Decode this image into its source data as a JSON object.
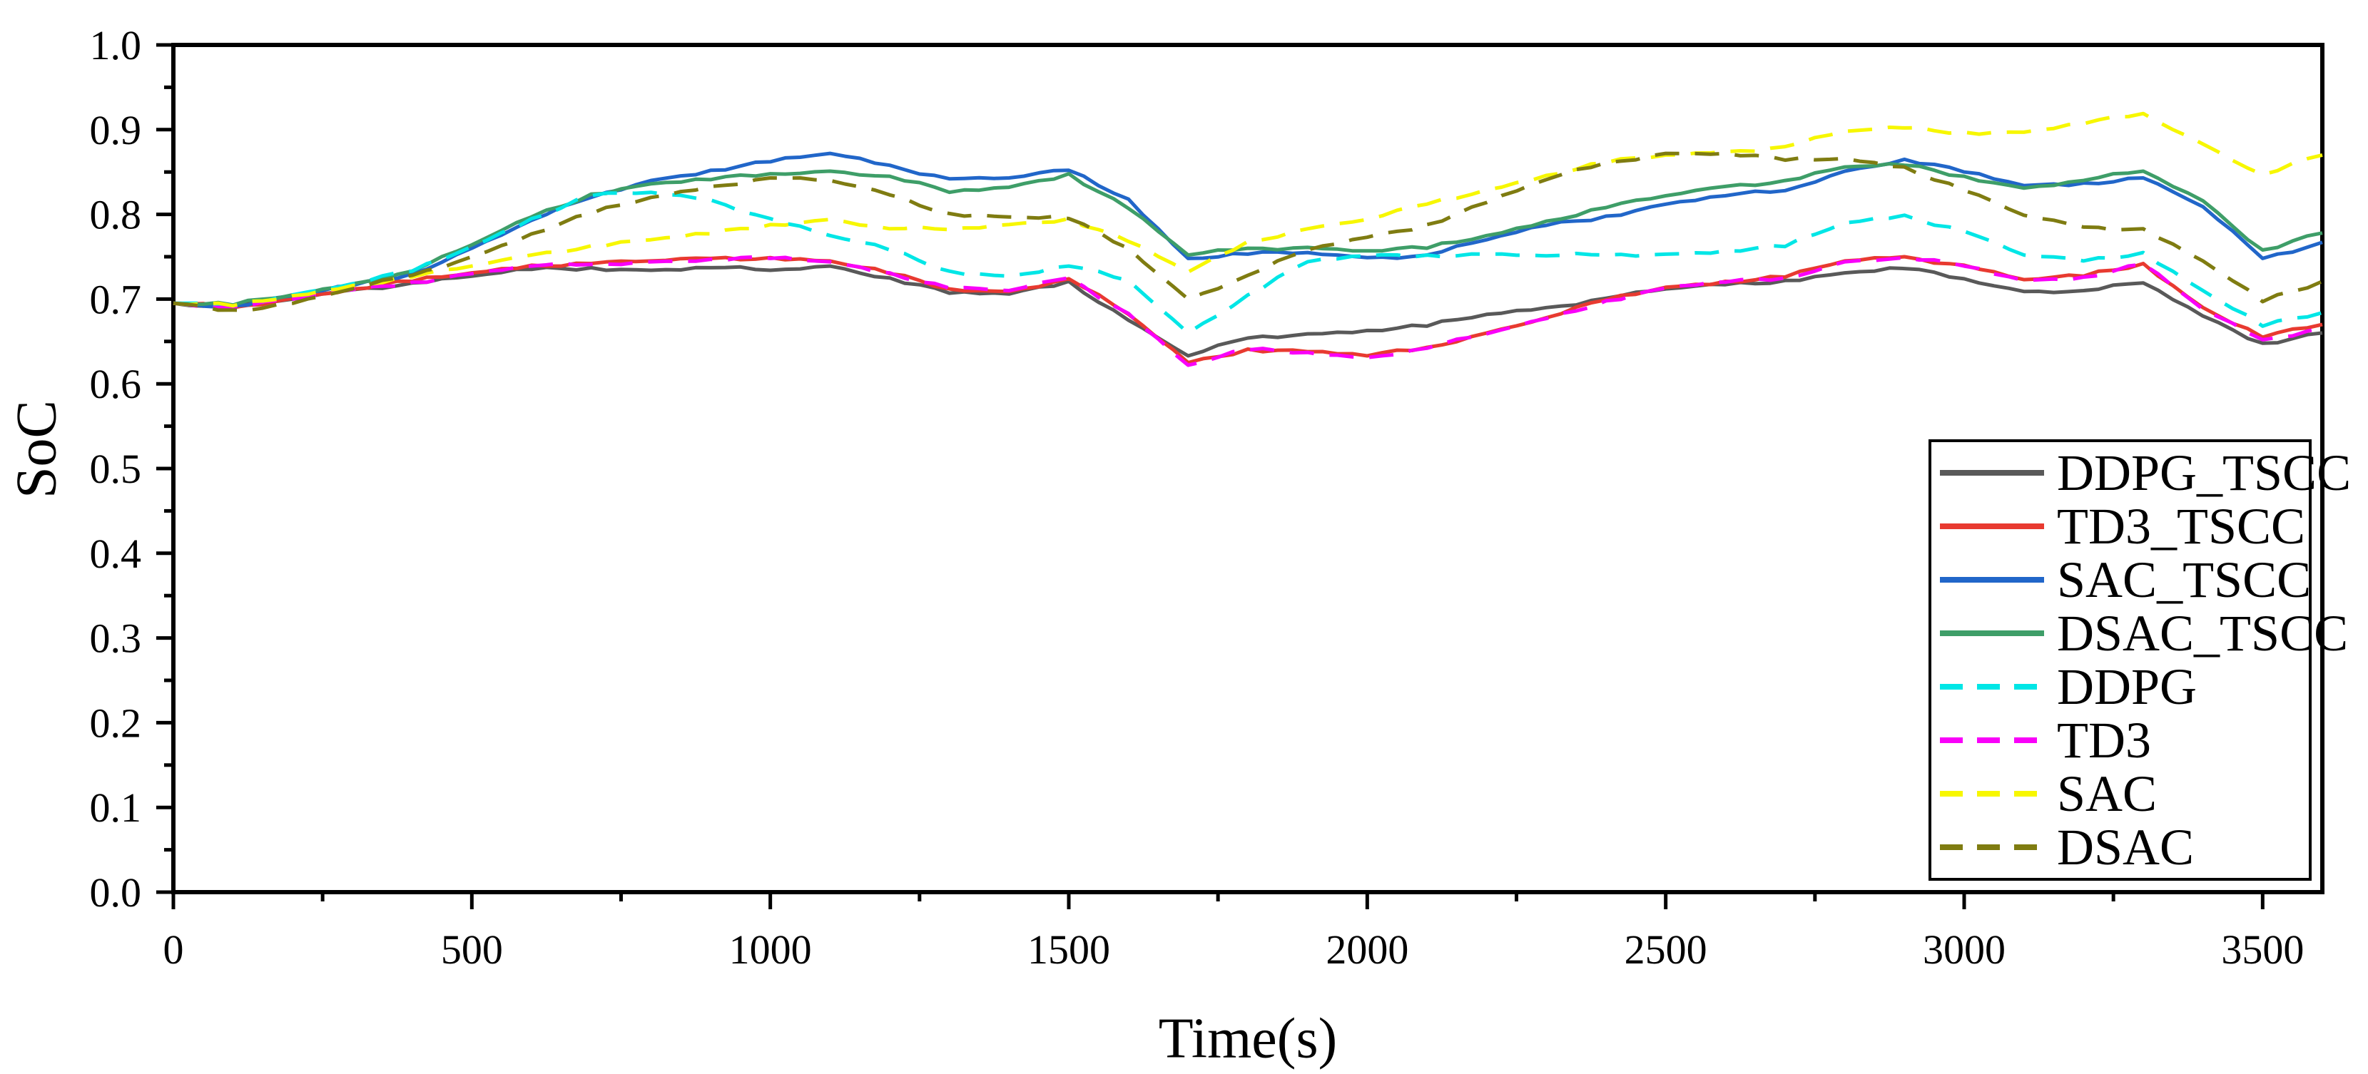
{
  "figure": {
    "background_color": "#ffffff",
    "axis_color": "#000000"
  },
  "chart_data": {
    "type": "line",
    "title": "",
    "xlabel": "Time(s)",
    "ylabel": "SoC",
    "xlim": [
      0,
      3600
    ],
    "ylim": [
      0.0,
      1.0
    ],
    "grid": false,
    "legend_position": "lower-right-inset",
    "x_major_ticks": [
      0,
      500,
      1000,
      1500,
      2000,
      2500,
      3000,
      3500
    ],
    "x_tick_labels": [
      "0",
      "500",
      "1000",
      "1500",
      "2000",
      "2500",
      "3000",
      "3500"
    ],
    "x_minor_step": 250,
    "y_major_ticks": [
      0.0,
      0.1,
      0.2,
      0.3,
      0.4,
      0.5,
      0.6,
      0.7,
      0.8,
      0.9,
      1.0
    ],
    "y_tick_labels": [
      "0.0",
      "0.1",
      "0.2",
      "0.3",
      "0.4",
      "0.5",
      "0.6",
      "0.7",
      "0.8",
      "0.9",
      "1.0"
    ],
    "y_minor_step": 0.05,
    "x_step": 100,
    "series": [
      {
        "name": "DDPG_TSCC",
        "color": "#595959",
        "style": "solid",
        "values": [
          0.695,
          0.691,
          0.7,
          0.711,
          0.719,
          0.727,
          0.735,
          0.737,
          0.734,
          0.737,
          0.734,
          0.739,
          0.725,
          0.707,
          0.706,
          0.721,
          0.675,
          0.633,
          0.654,
          0.659,
          0.663,
          0.668,
          0.682,
          0.69,
          0.701,
          0.712,
          0.717,
          0.722,
          0.731,
          0.736,
          0.724,
          0.709,
          0.71,
          0.719,
          0.68,
          0.648,
          0.66
        ]
      },
      {
        "name": "TD3_TSCC",
        "color": "#e83a30",
        "style": "solid",
        "values": [
          0.695,
          0.69,
          0.701,
          0.712,
          0.721,
          0.731,
          0.74,
          0.742,
          0.745,
          0.748,
          0.749,
          0.745,
          0.73,
          0.712,
          0.709,
          0.724,
          0.682,
          0.625,
          0.641,
          0.638,
          0.633,
          0.643,
          0.66,
          0.678,
          0.699,
          0.714,
          0.721,
          0.726,
          0.745,
          0.75,
          0.74,
          0.723,
          0.727,
          0.742,
          0.69,
          0.655,
          0.67
        ]
      },
      {
        "name": "SAC_TSCC",
        "color": "#2166c9",
        "style": "solid",
        "values": [
          0.695,
          0.692,
          0.704,
          0.716,
          0.73,
          0.76,
          0.793,
          0.82,
          0.84,
          0.852,
          0.862,
          0.872,
          0.858,
          0.842,
          0.843,
          0.852,
          0.818,
          0.748,
          0.753,
          0.755,
          0.749,
          0.752,
          0.77,
          0.787,
          0.798,
          0.812,
          0.822,
          0.828,
          0.851,
          0.865,
          0.85,
          0.834,
          0.837,
          0.843,
          0.809,
          0.748,
          0.767
        ]
      },
      {
        "name": "DSAC_TSCC",
        "color": "#3e9e68",
        "style": "solid",
        "values": [
          0.695,
          0.693,
          0.705,
          0.718,
          0.733,
          0.764,
          0.797,
          0.824,
          0.836,
          0.841,
          0.848,
          0.851,
          0.845,
          0.826,
          0.832,
          0.848,
          0.807,
          0.752,
          0.76,
          0.761,
          0.757,
          0.76,
          0.775,
          0.792,
          0.808,
          0.822,
          0.833,
          0.84,
          0.856,
          0.858,
          0.845,
          0.831,
          0.84,
          0.851,
          0.816,
          0.758,
          0.778
        ]
      },
      {
        "name": "DDPG",
        "color": "#00e6e6",
        "style": "dashed",
        "values": [
          0.695,
          0.692,
          0.705,
          0.718,
          0.733,
          0.762,
          0.795,
          0.822,
          0.826,
          0.817,
          0.795,
          0.775,
          0.758,
          0.733,
          0.727,
          0.739,
          0.722,
          0.66,
          0.705,
          0.744,
          0.751,
          0.752,
          0.753,
          0.751,
          0.752,
          0.753,
          0.757,
          0.762,
          0.79,
          0.799,
          0.78,
          0.752,
          0.745,
          0.755,
          0.71,
          0.668,
          0.684
        ]
      },
      {
        "name": "TD3",
        "color": "#f900f9",
        "style": "dashed",
        "values": [
          0.695,
          0.69,
          0.7,
          0.711,
          0.72,
          0.73,
          0.739,
          0.741,
          0.744,
          0.747,
          0.748,
          0.744,
          0.731,
          0.713,
          0.71,
          0.725,
          0.683,
          0.622,
          0.64,
          0.637,
          0.631,
          0.642,
          0.659,
          0.677,
          0.698,
          0.713,
          0.72,
          0.725,
          0.744,
          0.749,
          0.739,
          0.722,
          0.726,
          0.741,
          0.688,
          0.652,
          0.666
        ]
      },
      {
        "name": "SAC",
        "color": "#f7f700",
        "style": "dashed",
        "values": [
          0.695,
          0.692,
          0.704,
          0.716,
          0.726,
          0.739,
          0.752,
          0.763,
          0.77,
          0.777,
          0.788,
          0.794,
          0.783,
          0.782,
          0.788,
          0.795,
          0.768,
          0.732,
          0.768,
          0.783,
          0.794,
          0.812,
          0.829,
          0.846,
          0.861,
          0.87,
          0.874,
          0.88,
          0.898,
          0.902,
          0.897,
          0.897,
          0.907,
          0.919,
          0.883,
          0.847,
          0.87
        ]
      },
      {
        "name": "DSAC",
        "color": "#7f7c11",
        "style": "dashed",
        "values": [
          0.695,
          0.687,
          0.695,
          0.712,
          0.728,
          0.75,
          0.777,
          0.801,
          0.82,
          0.833,
          0.843,
          0.84,
          0.823,
          0.801,
          0.797,
          0.795,
          0.76,
          0.7,
          0.728,
          0.758,
          0.773,
          0.788,
          0.814,
          0.841,
          0.861,
          0.872,
          0.872,
          0.864,
          0.866,
          0.856,
          0.828,
          0.799,
          0.785,
          0.783,
          0.745,
          0.697,
          0.721
        ]
      }
    ]
  }
}
